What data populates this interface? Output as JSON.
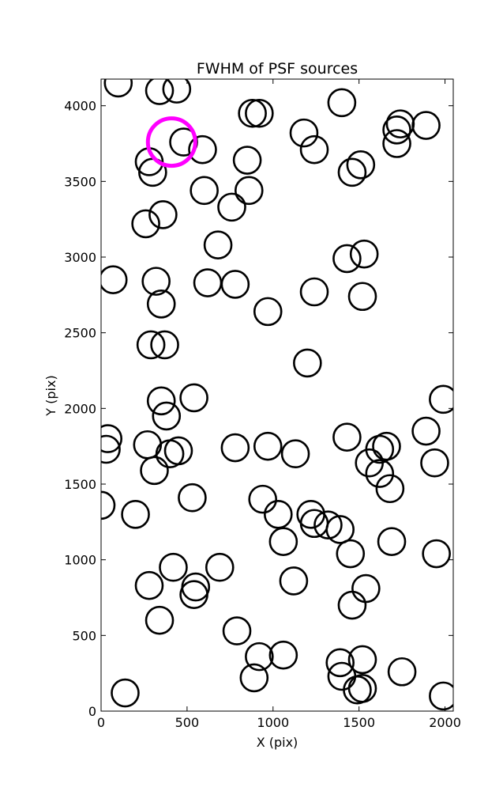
{
  "chart_data": {
    "type": "scatter",
    "title": "FWHM of PSF sources",
    "xlabel": "X (pix)",
    "ylabel": "Y (pix)",
    "xlim": [
      0,
      2048
    ],
    "ylim": [
      0,
      4176
    ],
    "xticks": [
      0,
      500,
      1000,
      1500,
      2000
    ],
    "yticks": [
      0,
      500,
      1000,
      1500,
      2000,
      2500,
      3000,
      3500,
      4000
    ],
    "grid": false,
    "marker": "open-circle",
    "colors": {
      "default": "#000000",
      "highlight": "#ff00ff"
    },
    "series": [
      {
        "role": "sources",
        "points": [
          [
            100,
            4150
          ],
          [
            340,
            4100
          ],
          [
            440,
            4110
          ],
          [
            880,
            3950
          ],
          [
            920,
            3950
          ],
          [
            1400,
            4020
          ],
          [
            1180,
            3820
          ],
          [
            1240,
            3710
          ],
          [
            1720,
            3840
          ],
          [
            1740,
            3880
          ],
          [
            1890,
            3870
          ],
          [
            1720,
            3750
          ],
          [
            480,
            3760
          ],
          [
            590,
            3710
          ],
          [
            280,
            3630
          ],
          [
            300,
            3560
          ],
          [
            850,
            3640
          ],
          [
            1460,
            3560
          ],
          [
            1510,
            3610
          ],
          [
            600,
            3440
          ],
          [
            860,
            3440
          ],
          [
            760,
            3330
          ],
          [
            360,
            3280
          ],
          [
            260,
            3220
          ],
          [
            680,
            3080
          ],
          [
            1430,
            2990
          ],
          [
            1530,
            3020
          ],
          [
            70,
            2850
          ],
          [
            320,
            2840
          ],
          [
            620,
            2830
          ],
          [
            780,
            2820
          ],
          [
            350,
            2690
          ],
          [
            1240,
            2770
          ],
          [
            1520,
            2740
          ],
          [
            970,
            2640
          ],
          [
            290,
            2420
          ],
          [
            370,
            2420
          ],
          [
            1200,
            2300
          ],
          [
            350,
            2050
          ],
          [
            540,
            2070
          ],
          [
            380,
            1950
          ],
          [
            1990,
            2060
          ],
          [
            40,
            1800
          ],
          [
            30,
            1730
          ],
          [
            270,
            1760
          ],
          [
            450,
            1720
          ],
          [
            400,
            1700
          ],
          [
            780,
            1740
          ],
          [
            970,
            1750
          ],
          [
            1130,
            1700
          ],
          [
            1430,
            1810
          ],
          [
            1620,
            1730
          ],
          [
            1660,
            1750
          ],
          [
            1890,
            1850
          ],
          [
            1940,
            1640
          ],
          [
            1560,
            1640
          ],
          [
            1620,
            1570
          ],
          [
            1680,
            1470
          ],
          [
            310,
            1590
          ],
          [
            0,
            1360
          ],
          [
            200,
            1300
          ],
          [
            530,
            1410
          ],
          [
            940,
            1400
          ],
          [
            1030,
            1300
          ],
          [
            1060,
            1120
          ],
          [
            1220,
            1300
          ],
          [
            1240,
            1240
          ],
          [
            1320,
            1230
          ],
          [
            1390,
            1200
          ],
          [
            1450,
            1040
          ],
          [
            1690,
            1120
          ],
          [
            1950,
            1040
          ],
          [
            420,
            950
          ],
          [
            690,
            950
          ],
          [
            280,
            830
          ],
          [
            550,
            820
          ],
          [
            540,
            770
          ],
          [
            1120,
            860
          ],
          [
            1540,
            810
          ],
          [
            1460,
            700
          ],
          [
            340,
            600
          ],
          [
            790,
            530
          ],
          [
            920,
            360
          ],
          [
            1060,
            370
          ],
          [
            890,
            220
          ],
          [
            1390,
            320
          ],
          [
            1520,
            340
          ],
          [
            1400,
            230
          ],
          [
            1490,
            140
          ],
          [
            1520,
            150
          ],
          [
            1750,
            260
          ],
          [
            140,
            120
          ],
          [
            1990,
            100
          ]
        ]
      },
      {
        "role": "highlight",
        "points": [
          [
            410,
            3760
          ]
        ]
      }
    ]
  }
}
